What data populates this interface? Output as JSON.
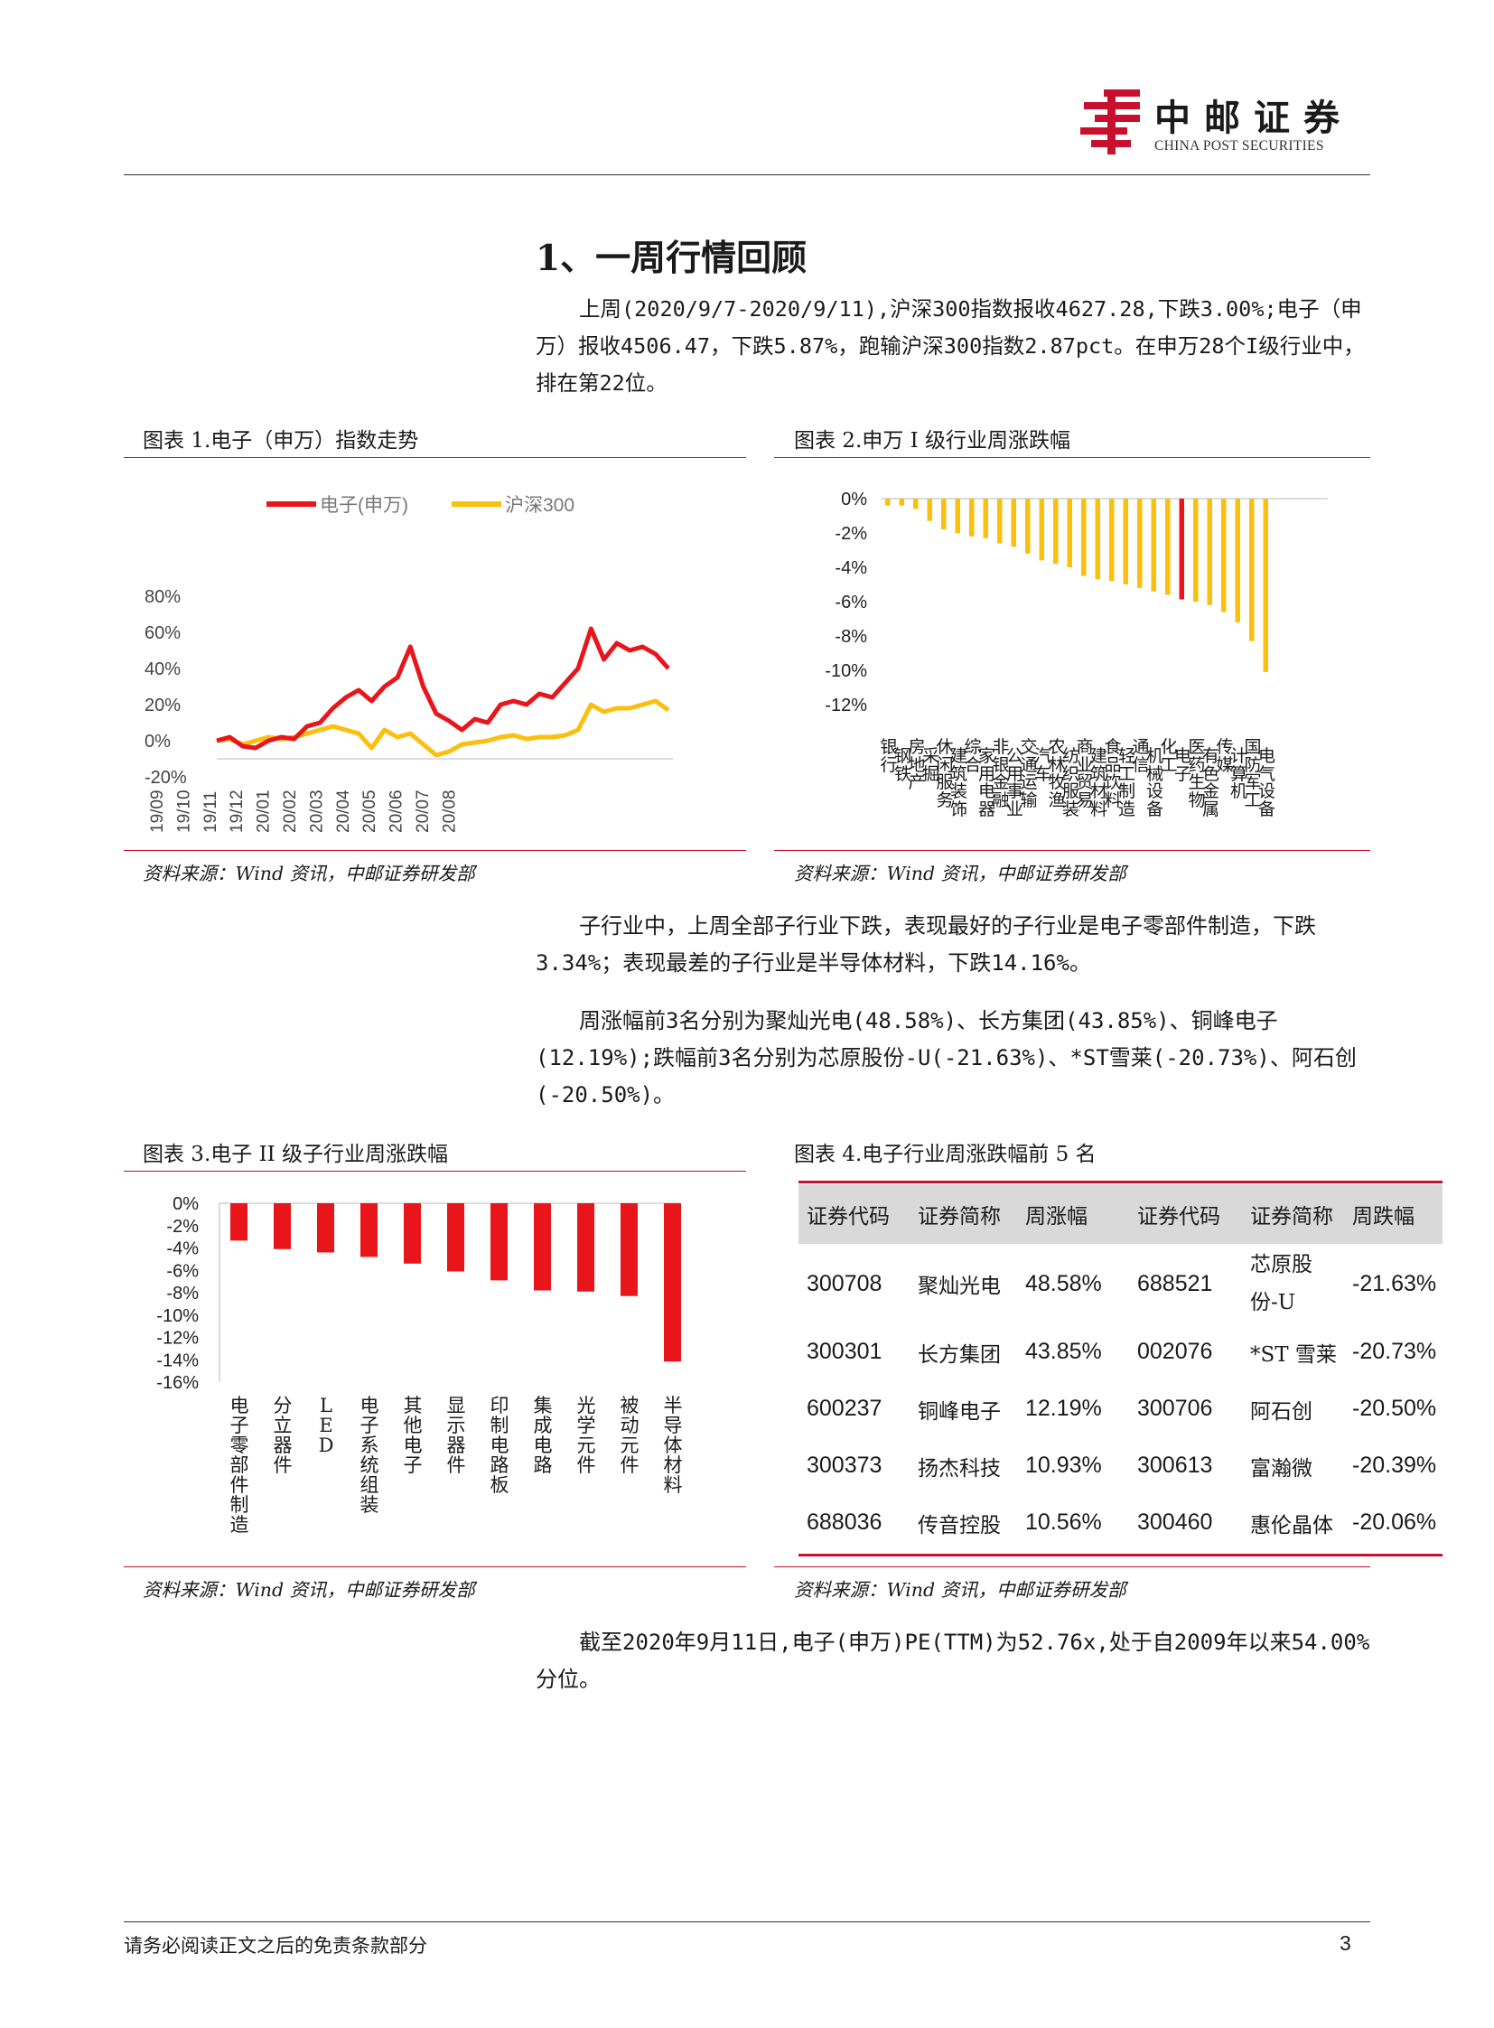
{
  "header": {
    "logo_cn": "中邮证券",
    "logo_en": "CHINA POST SECURITIES"
  },
  "section_title": "1、一周行情回顾",
  "para1": "上周(2020/9/7-2020/9/11),沪深300指数报收4627.28,下跌3.00%;电子（申万）报收4506.47，下跌5.87%，跑输沪深300指数2.87pct。在申万28个I级行业中，排在第22位。",
  "para2": "子行业中，上周全部子行业下跌，表现最好的子行业是电子零部件制造，下跌3.34%；表现最差的子行业是半导体材料，下跌14.16%。",
  "para3": "周涨幅前3名分别为聚灿光电(48.58%)、长方集团(43.85%)、铜峰电子(12.19%);跌幅前3名分别为芯原股份-U(-21.63%)、*ST雪莱(-20.73%)、阿石创(-20.50%)。",
  "para4": "截至2020年9月11日,电子(申万)PE(TTM)为52.76x,处于自2009年以来54.00%分位。",
  "fig1": {
    "title": "图表 1.电子（申万）指数走势",
    "source": "资料来源：Wind 资讯，中邮证券研发部"
  },
  "fig2": {
    "title": "图表 2.申万 I 级行业周涨跌幅",
    "source": "资料来源：Wind 资讯，中邮证券研发部"
  },
  "fig3": {
    "title": "图表 3.电子 II 级子行业周涨跌幅",
    "source": "资料来源：Wind 资讯，中邮证券研发部"
  },
  "fig4": {
    "title": "图表 4.电子行业周涨跌幅前 5 名",
    "source": "资料来源：Wind 资讯，中邮证券研发部",
    "headers": [
      "证券代码",
      "证券简称",
      "周涨幅",
      "证券代码",
      "证券简称",
      "周跌幅"
    ],
    "rows": [
      [
        "300708",
        "聚灿光电",
        "48.58%",
        "688521",
        "芯原股份-U",
        "-21.63%"
      ],
      [
        "300301",
        "长方集团",
        "43.85%",
        "002076",
        "*ST 雪莱",
        "-20.73%"
      ],
      [
        "600237",
        "铜峰电子",
        "12.19%",
        "300706",
        "阿石创",
        "-20.50%"
      ],
      [
        "300373",
        "扬杰科技",
        "10.93%",
        "300613",
        "富瀚微",
        "-20.39%"
      ],
      [
        "688036",
        "传音控股",
        "10.56%",
        "300460",
        "惠伦晶体",
        "-20.06%"
      ]
    ]
  },
  "footer": {
    "disclaimer": "请务必阅读正文之后的免责条款部分",
    "page": "3"
  },
  "colors": {
    "red": "#e8151b",
    "yellow": "#fbbf0e",
    "brand_red": "#c8102e"
  },
  "chart_data": [
    {
      "type": "line",
      "x_ticks": [
        "19/09",
        "19/10",
        "19/11",
        "19/12",
        "20/01",
        "20/02",
        "20/03",
        "20/04",
        "20/05",
        "20/06",
        "20/07",
        "20/08"
      ],
      "ylim": [
        -0.2,
        0.8
      ],
      "y_ticks": [
        "-20%",
        "0%",
        "20%",
        "40%",
        "60%",
        "80%"
      ],
      "legend_position": "top",
      "series": [
        {
          "name": "电子(申万)",
          "color": "#e8151b",
          "values": [
            0,
            0.02,
            -0.03,
            -0.04,
            0,
            0.02,
            0.01,
            0.08,
            0.1,
            0.18,
            0.24,
            0.28,
            0.22,
            0.3,
            0.35,
            0.52,
            0.3,
            0.15,
            0.11,
            0.06,
            0.12,
            0.1,
            0.2,
            0.22,
            0.2,
            0.26,
            0.24,
            0.32,
            0.4,
            0.62,
            0.45,
            0.54,
            0.5,
            0.52,
            0.48,
            0.4
          ]
        },
        {
          "name": "沪深300",
          "color": "#fbbf0e",
          "values": [
            0,
            0.01,
            -0.02,
            0,
            0.02,
            0.01,
            0.02,
            0.04,
            0.06,
            0.08,
            0.06,
            0.04,
            -0.04,
            0.06,
            0.02,
            0.04,
            -0.02,
            -0.08,
            -0.06,
            -0.02,
            -0.01,
            0,
            0.02,
            0.03,
            0.01,
            0.02,
            0.02,
            0.03,
            0.06,
            0.2,
            0.16,
            0.18,
            0.18,
            0.2,
            0.22,
            0.17
          ]
        }
      ]
    },
    {
      "type": "bar",
      "ylim": [
        -0.12,
        0
      ],
      "y_ticks": [
        "0%",
        "-2%",
        "-4%",
        "-6%",
        "-8%",
        "-10%",
        "-12%"
      ],
      "categories": [
        "银行",
        "钢铁",
        "房地产",
        "采掘",
        "休闲服务",
        "建筑装饰",
        "综合",
        "家用电器",
        "非银金融",
        "公用事业",
        "交通运输",
        "汽车",
        "农林牧渔",
        "纺织服装",
        "商业贸易",
        "建筑材料",
        "食品饮料",
        "轻工制造",
        "通信",
        "机械设备",
        "化工",
        "电子",
        "医药生物",
        "有色金属",
        "传媒",
        "计算机",
        "国防军工",
        "电气设备"
      ],
      "values": [
        -0.004,
        -0.004,
        -0.006,
        -0.013,
        -0.018,
        -0.02,
        -0.022,
        -0.023,
        -0.026,
        -0.028,
        -0.032,
        -0.036,
        -0.038,
        -0.04,
        -0.045,
        -0.047,
        -0.048,
        -0.05,
        -0.052,
        -0.054,
        -0.056,
        -0.0587,
        -0.06,
        -0.062,
        -0.066,
        -0.072,
        -0.083,
        -0.101
      ],
      "highlight_index": 21
    },
    {
      "type": "bar",
      "ylim": [
        -0.16,
        0
      ],
      "y_ticks": [
        "0%",
        "-2%",
        "-4%",
        "-6%",
        "-8%",
        "-10%",
        "-12%",
        "-14%",
        "-16%"
      ],
      "categories": [
        "电子零部件制造",
        "分立器件",
        "LED",
        "电子系统组装",
        "其他电子",
        "显示器件",
        "印制电路板",
        "集成电路",
        "光学元件",
        "被动元件",
        "半导体材料"
      ],
      "values": [
        -0.0334,
        -0.041,
        -0.044,
        -0.048,
        -0.054,
        -0.061,
        -0.069,
        -0.078,
        -0.079,
        -0.083,
        -0.1416
      ]
    }
  ]
}
